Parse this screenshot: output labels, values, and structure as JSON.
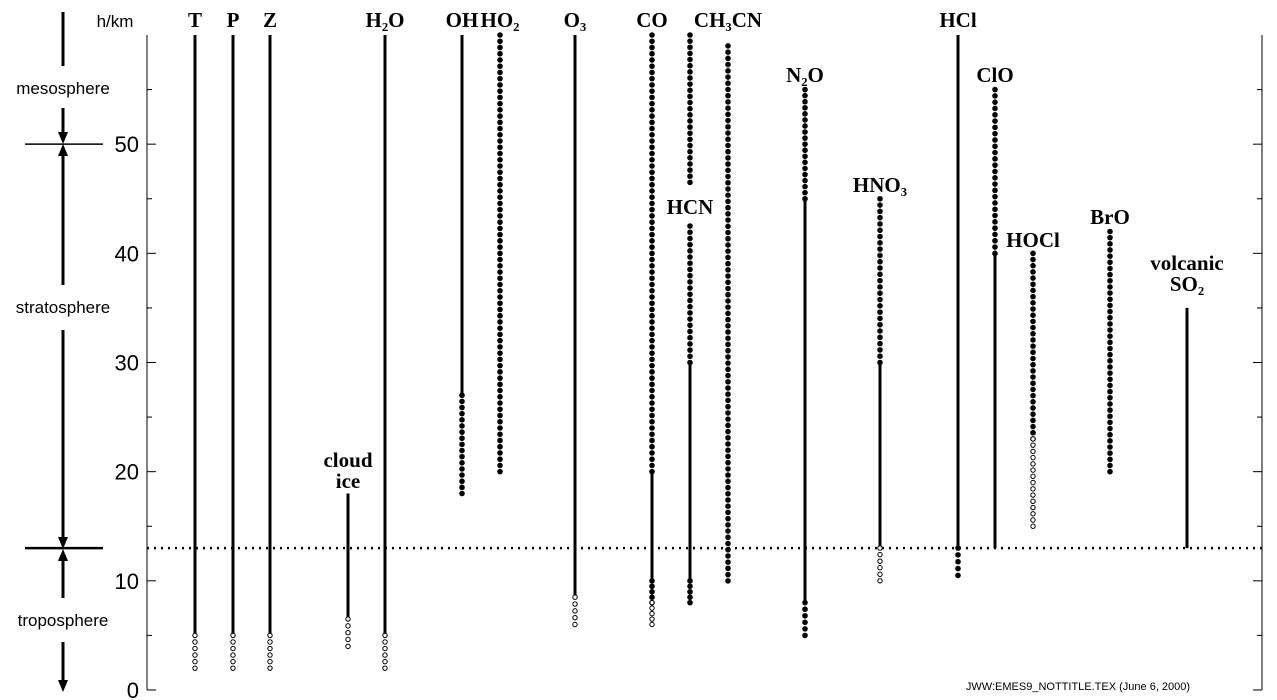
{
  "chart_data": {
    "type": "altitude-ranges",
    "y_label": "h/km",
    "ylim": [
      0,
      60
    ],
    "yticks": [
      0,
      10,
      20,
      30,
      40,
      50
    ],
    "minor_yticks": [
      5,
      15,
      25,
      35,
      45,
      55
    ],
    "regions": [
      "mesosphere",
      "stratosphere",
      "troposphere"
    ],
    "boundaries": [
      13,
      50
    ],
    "footer": "JWW:EMES9_NOTTITLE.TEX (June 6, 2000)",
    "species": [
      {
        "label": [
          "T"
        ],
        "segments": [
          {
            "from": 5,
            "to": 60,
            "style": "solid"
          },
          {
            "from": 2,
            "to": 5,
            "style": "open"
          }
        ]
      },
      {
        "label": [
          "P"
        ],
        "segments": [
          {
            "from": 5,
            "to": 60,
            "style": "solid"
          },
          {
            "from": 2,
            "to": 5,
            "style": "open"
          }
        ]
      },
      {
        "label": [
          "Z"
        ],
        "segments": [
          {
            "from": 5,
            "to": 60,
            "style": "solid"
          },
          {
            "from": 2,
            "to": 5,
            "style": "open"
          }
        ]
      },
      {
        "label": [
          "cloud",
          "ice"
        ],
        "segments": [
          {
            "from": 6.5,
            "to": 18,
            "style": "solid"
          },
          {
            "from": 4,
            "to": 6.5,
            "style": "open"
          }
        ]
      },
      {
        "label": [
          "H₂O"
        ],
        "segments": [
          {
            "from": 5,
            "to": 60,
            "style": "solid"
          },
          {
            "from": 2,
            "to": 5,
            "style": "open"
          }
        ]
      },
      {
        "label": [
          "OH"
        ],
        "segments": [
          {
            "from": 27,
            "to": 60,
            "style": "solid"
          },
          {
            "from": 18,
            "to": 27,
            "style": "dotted"
          }
        ]
      },
      {
        "label": [
          "HO₂"
        ],
        "segments": [
          {
            "from": 20,
            "to": 60,
            "style": "dotted"
          }
        ]
      },
      {
        "label": [
          "O₃"
        ],
        "segments": [
          {
            "from": 8.5,
            "to": 60,
            "style": "solid"
          },
          {
            "from": 6,
            "to": 8.5,
            "style": "open"
          }
        ]
      },
      {
        "label": [
          "CO"
        ],
        "segments": [
          {
            "from": 20,
            "to": 60,
            "style": "dotted"
          },
          {
            "from": 10,
            "to": 20,
            "style": "solid"
          },
          {
            "from": 8,
            "to": 10,
            "style": "dotted"
          },
          {
            "from": 6,
            "to": 8,
            "style": "open"
          }
        ]
      },
      {
        "label": [
          "HCN"
        ],
        "segments": [
          {
            "from": 46.5,
            "to": 60,
            "style": "dotted"
          },
          {
            "from": 30,
            "to": 42.5,
            "style": "dotted"
          },
          {
            "from": 10,
            "to": 30,
            "style": "solid"
          },
          {
            "from": 8,
            "to": 10,
            "style": "dotted"
          }
        ]
      },
      {
        "label": [
          "CH₃CN"
        ],
        "segments": [
          {
            "from": 10,
            "to": 59,
            "style": "dotted"
          }
        ]
      },
      {
        "label": [
          "N₂O"
        ],
        "segments": [
          {
            "from": 45,
            "to": 55,
            "style": "dotted"
          },
          {
            "from": 8,
            "to": 45,
            "style": "solid"
          },
          {
            "from": 5,
            "to": 8,
            "style": "dotted"
          }
        ]
      },
      {
        "label": [
          "HNO₃"
        ],
        "segments": [
          {
            "from": 30,
            "to": 45,
            "style": "dotted"
          },
          {
            "from": 13,
            "to": 30,
            "style": "solid"
          },
          {
            "from": 10,
            "to": 13,
            "style": "open"
          }
        ]
      },
      {
        "label": [
          "HCl"
        ],
        "segments": [
          {
            "from": 13,
            "to": 60,
            "style": "solid"
          },
          {
            "from": 10.5,
            "to": 13,
            "style": "dotted"
          }
        ]
      },
      {
        "label": [
          "ClO"
        ],
        "segments": [
          {
            "from": 40,
            "to": 55,
            "style": "dotted"
          },
          {
            "from": 13,
            "to": 40,
            "style": "solid"
          }
        ]
      },
      {
        "label": [
          "HOCl"
        ],
        "segments": [
          {
            "from": 23,
            "to": 40,
            "style": "dotted"
          },
          {
            "from": 15,
            "to": 23,
            "style": "open"
          }
        ]
      },
      {
        "label": [
          "BrO"
        ],
        "segments": [
          {
            "from": 20,
            "to": 42,
            "style": "dotted"
          }
        ]
      },
      {
        "label": [
          "volcanic",
          "SO₂"
        ],
        "segments": [
          {
            "from": 13,
            "to": 35,
            "style": "solid"
          }
        ]
      }
    ]
  }
}
